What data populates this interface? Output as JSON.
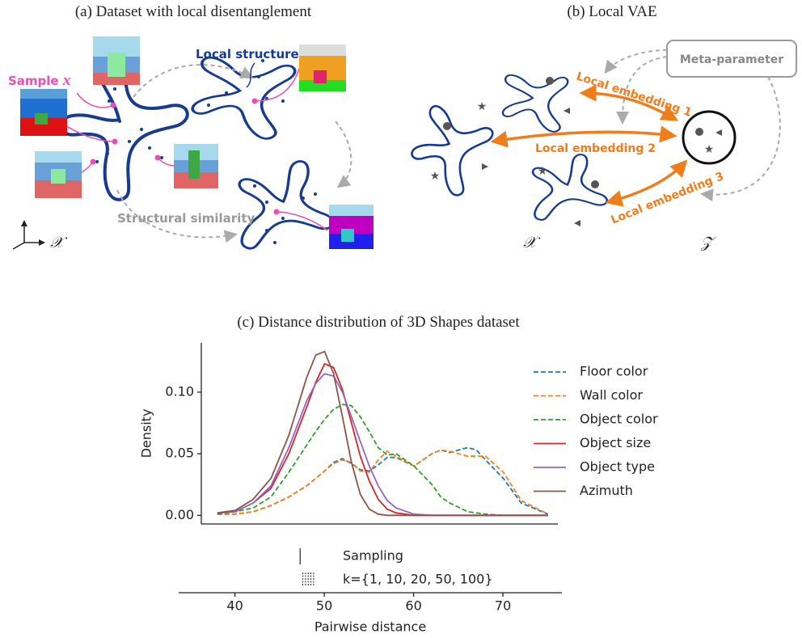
{
  "panel_a": {
    "title": "(a) Dataset with local disentanglement",
    "sample_label": "Sample",
    "sample_variable": "x",
    "local_structure_label": "Local structure",
    "similarity_label": "Structural similarity",
    "space_symbol": "𝒳"
  },
  "panel_b": {
    "title": "(b) Local VAE",
    "meta_parameter": "Meta-parameter",
    "embedding_labels": [
      "Local embedding 1",
      "Local embedding 2",
      "Local embedding 3"
    ],
    "input_symbol": "𝒳",
    "latent_symbol": "𝒵"
  },
  "chart_data": {
    "type": "line",
    "title": "(c) Distance distribution of 3D Shapes dataset",
    "x_label": "Pairwise distance",
    "y_label": "Density",
    "x": [
      38,
      40,
      42,
      44,
      46,
      48,
      49,
      50,
      51,
      52,
      53,
      54,
      55,
      56,
      57,
      58,
      60,
      62,
      63,
      64,
      66,
      67,
      68,
      70,
      72,
      75
    ],
    "series": [
      {
        "name": "Floor color",
        "color": "#1f77b4",
        "style": "dashed",
        "values": [
          0.001,
          0.001,
          0.003,
          0.008,
          0.015,
          0.024,
          0.03,
          0.036,
          0.043,
          0.046,
          0.042,
          0.037,
          0.036,
          0.041,
          0.047,
          0.047,
          0.04,
          0.05,
          0.053,
          0.051,
          0.055,
          0.053,
          0.045,
          0.03,
          0.01,
          0.001
        ]
      },
      {
        "name": "Wall color",
        "color": "#ff7f0e",
        "style": "dashed",
        "values": [
          0.001,
          0.001,
          0.003,
          0.008,
          0.015,
          0.024,
          0.03,
          0.036,
          0.042,
          0.045,
          0.043,
          0.036,
          0.035,
          0.045,
          0.052,
          0.048,
          0.04,
          0.05,
          0.053,
          0.052,
          0.048,
          0.048,
          0.048,
          0.035,
          0.012,
          0.001
        ]
      },
      {
        "name": "Object color",
        "color": "#2ca02c",
        "style": "dashed",
        "values": [
          0.001,
          0.003,
          0.006,
          0.015,
          0.035,
          0.057,
          0.068,
          0.078,
          0.086,
          0.09,
          0.089,
          0.08,
          0.068,
          0.055,
          0.049,
          0.05,
          0.04,
          0.025,
          0.015,
          0.01,
          0.003,
          0.002,
          0.001,
          0,
          0,
          0
        ]
      },
      {
        "name": "Object size",
        "color": "#d62728",
        "style": "solid",
        "values": [
          0.002,
          0.003,
          0.01,
          0.022,
          0.05,
          0.088,
          0.108,
          0.123,
          0.12,
          0.102,
          0.075,
          0.048,
          0.028,
          0.013,
          0.005,
          0.002,
          0,
          0,
          0,
          0,
          0,
          0,
          0,
          0,
          0,
          0
        ]
      },
      {
        "name": "Object type",
        "color": "#9467bd",
        "style": "solid",
        "values": [
          0.002,
          0.003,
          0.01,
          0.024,
          0.055,
          0.093,
          0.107,
          0.115,
          0.113,
          0.1,
          0.08,
          0.06,
          0.04,
          0.024,
          0.012,
          0.006,
          0.001,
          0,
          0,
          0,
          0,
          0,
          0,
          0,
          0,
          0
        ]
      },
      {
        "name": "Azimuth",
        "color": "#8c564b",
        "style": "solid",
        "values": [
          0.002,
          0.004,
          0.013,
          0.03,
          0.065,
          0.112,
          0.13,
          0.133,
          0.115,
          0.08,
          0.043,
          0.017,
          0.005,
          0.001,
          0,
          0,
          0,
          0,
          0,
          0,
          0,
          0,
          0,
          0,
          0,
          0
        ]
      }
    ],
    "xlim": [
      36.2,
      76.1
    ],
    "ylim": [
      -0.007,
      0.14
    ],
    "xticks": [
      40,
      50,
      60,
      70
    ],
    "yticks": [
      {
        "value": 0,
        "label": "0.00"
      },
      {
        "value": 0.05,
        "label": "0.05"
      },
      {
        "value": 0.1,
        "label": "0.10"
      }
    ],
    "legend": "right",
    "rug": {
      "xlim": [
        33.7,
        76.6
      ],
      "sampling": 47.3,
      "k": [
        47.6,
        47.9,
        48.2,
        48.5,
        48.8
      ],
      "labels": [
        "Sampling",
        "k={1, 10, 20, 50, 100}"
      ]
    }
  }
}
